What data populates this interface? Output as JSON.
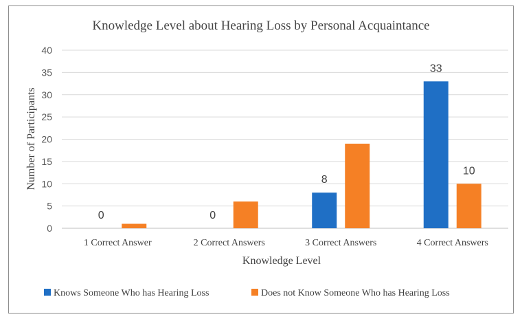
{
  "chart_data": {
    "type": "bar",
    "title": "Knowledge Level about Hearing Loss by Personal Acquaintance",
    "xlabel": "Knowledge Level",
    "ylabel": "Number of Participants",
    "categories": [
      "1 Correct Answer",
      "2 Correct Answers",
      "3 Correct Answers",
      "4 Correct Answers"
    ],
    "series": [
      {
        "name": "Knows Someone Who has Hearing Loss",
        "color": "#1f6fc5",
        "values": [
          0,
          0,
          8,
          33
        ],
        "data_labels": [
          "0",
          "0",
          "8",
          "33"
        ]
      },
      {
        "name": "Does not Know Someone Who has Hearing Loss",
        "color": "#f58025",
        "values": [
          1,
          6,
          19,
          10
        ],
        "data_labels": [
          "",
          "",
          "",
          "10"
        ]
      }
    ],
    "ylim": [
      0,
      40
    ],
    "yticks": [
      0,
      5,
      10,
      15,
      20,
      25,
      30,
      35,
      40
    ],
    "grid": true,
    "legend_position": "bottom"
  }
}
